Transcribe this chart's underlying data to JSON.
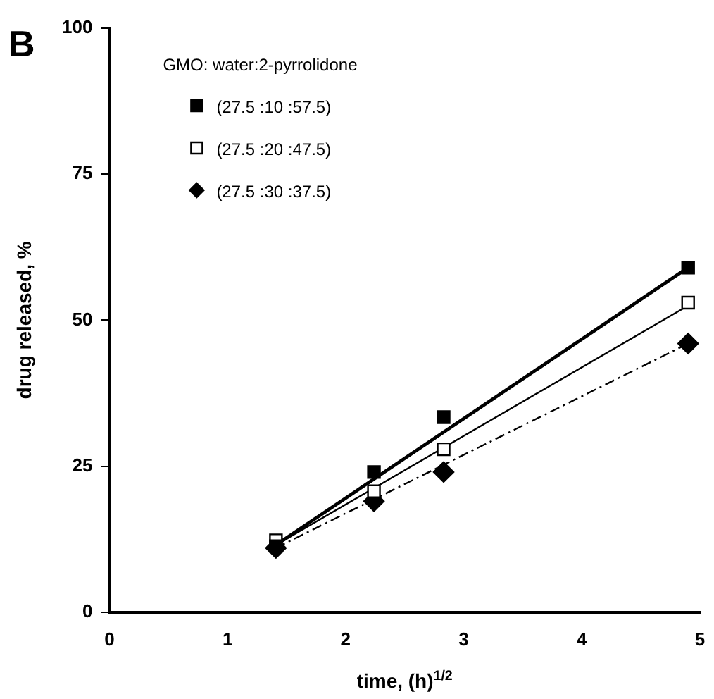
{
  "chart_data": {
    "type": "scatter",
    "title": "B",
    "xlabel": "time, (h)$^{1/2}$",
    "ylabel": "drug released, %",
    "legend_title": "GMO: water:2-pyrrolidone",
    "xlim": [
      0,
      5
    ],
    "xticks": [
      0,
      1,
      2,
      3,
      4,
      5
    ],
    "ylim": [
      0,
      100
    ],
    "yticks": [
      0,
      25,
      50,
      75,
      100
    ],
    "grid": false,
    "legend": "top left",
    "series": [
      {
        "name": "(27.5 :10 :57.5)",
        "marker": "square",
        "color": "#000000",
        "x": [
          1.41,
          2.24,
          2.83,
          4.9
        ],
        "values": [
          11.3,
          24,
          33.4,
          59
        ]
      },
      {
        "name": "(27.5 :20 :47.5)",
        "marker": "square",
        "color": "#ffffff",
        "x": [
          1.41,
          2.24,
          2.83,
          4.9
        ],
        "values": [
          12.3,
          20.7,
          27.9,
          53
        ]
      },
      {
        "name": "(27.5 :30 :37.5)",
        "marker": "diamond",
        "color": "#000000",
        "x": [
          1.41,
          2.24,
          2.83,
          4.9
        ],
        "values": [
          11,
          19,
          24,
          46
        ]
      },
      {
        "type": "line",
        "marker": "none",
        "line_style": "solid",
        "color": "#000000",
        "x": [
          1.41,
          4.9
        ],
        "values": [
          11.5,
          59
        ]
      },
      {
        "type": "line",
        "marker": "none",
        "line_style": "solid",
        "color": "#000000",
        "x": [
          1.41,
          4.9
        ],
        "values": [
          11.5,
          52.5
        ]
      },
      {
        "type": "line",
        "marker": "none",
        "line_style": "dashed",
        "color": "#000000",
        "x": [
          1.41,
          4.9
        ],
        "values": [
          11,
          46
        ]
      }
    ]
  }
}
